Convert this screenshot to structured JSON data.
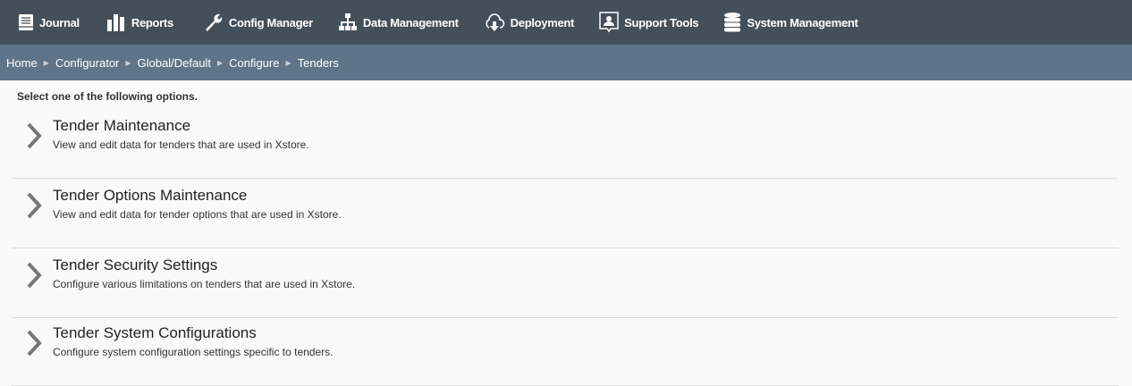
{
  "nav": {
    "items": [
      {
        "label": "Journal",
        "icon": "book-icon"
      },
      {
        "label": "Reports",
        "icon": "bar-chart-icon"
      },
      {
        "label": "Config Manager",
        "icon": "wrench-icon"
      },
      {
        "label": "Data Management",
        "icon": "sitemap-icon"
      },
      {
        "label": "Deployment",
        "icon": "cloud-download-icon"
      },
      {
        "label": "Support Tools",
        "icon": "support-person-icon"
      },
      {
        "label": "System Management",
        "icon": "database-icon"
      }
    ]
  },
  "breadcrumb": [
    "Home",
    "Configurator",
    "Global/Default",
    "Configure",
    "Tenders"
  ],
  "intro": "Select one of the following options.",
  "options": [
    {
      "title": "Tender Maintenance",
      "desc": "View and edit data for tenders that are used in Xstore."
    },
    {
      "title": "Tender Options Maintenance",
      "desc": "View and edit data for tender options that are used in Xstore."
    },
    {
      "title": "Tender Security Settings",
      "desc": "Configure various limitations on tenders that are used in Xstore."
    },
    {
      "title": "Tender System Configurations",
      "desc": "Configure system configuration settings specific to tenders."
    }
  ]
}
